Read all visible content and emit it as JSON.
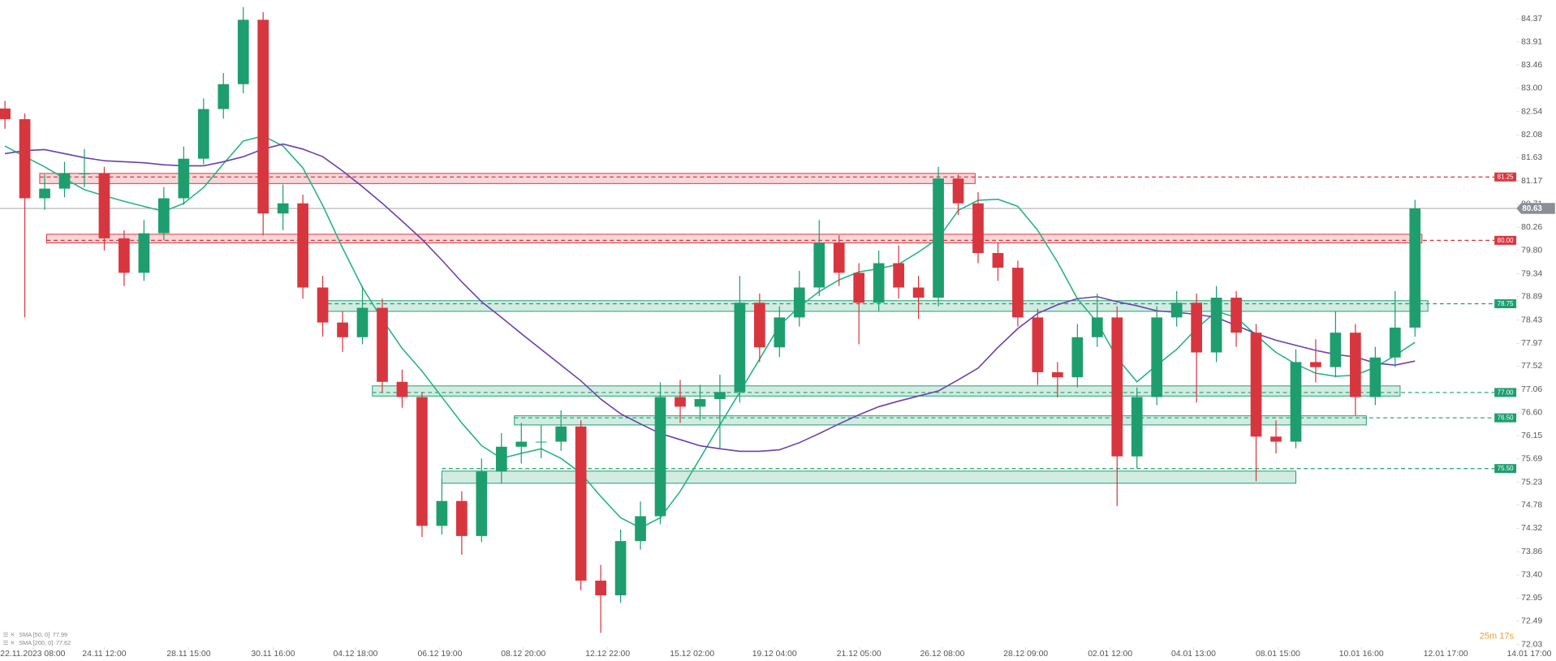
{
  "chart_data": {
    "type": "candlestick",
    "up_color": "#1e9e6e",
    "down_color": "#d8363f",
    "candles": {
      "open": [
        82.6,
        82.39,
        80.83,
        81.02,
        81.32,
        81.32,
        80.04,
        79.36,
        80.14,
        80.83,
        81.61,
        82.59,
        83.08,
        84.35,
        80.53,
        80.73,
        79.07,
        78.38,
        78.09,
        78.67,
        77.21,
        76.91,
        74.37,
        74.86,
        74.17,
        75.44,
        75.93,
        76.03,
        76.03,
        76.33,
        73.29,
        73.0,
        74.07,
        74.56,
        76.91,
        76.72,
        76.87,
        77.01,
        78.77,
        77.89,
        78.48,
        79.07,
        79.95,
        79.36,
        78.77,
        79.55,
        79.07,
        78.87,
        81.22,
        80.73,
        79.75,
        79.46,
        78.48,
        77.4,
        77.3,
        78.09,
        78.48,
        75.74,
        76.91,
        78.48,
        78.77,
        77.79,
        78.87,
        78.18,
        76.13,
        76.03,
        77.6,
        77.5,
        78.18,
        76.91,
        77.69,
        78.28
      ],
      "high": [
        82.75,
        82.5,
        81.3,
        81.55,
        81.8,
        81.45,
        80.2,
        80.4,
        81.05,
        81.85,
        82.8,
        83.3,
        84.6,
        84.5,
        81.1,
        80.9,
        79.3,
        78.6,
        79.1,
        78.85,
        77.45,
        77.0,
        75.3,
        75.05,
        75.7,
        76.2,
        76.4,
        76.35,
        76.65,
        76.45,
        73.6,
        74.3,
        74.85,
        77.2,
        77.25,
        77.15,
        77.35,
        79.3,
        78.95,
        78.7,
        79.4,
        80.4,
        80.1,
        79.55,
        79.8,
        79.9,
        79.3,
        81.45,
        81.3,
        80.95,
        79.95,
        79.6,
        78.65,
        77.6,
        78.35,
        78.95,
        78.7,
        77.1,
        78.7,
        79.0,
        78.95,
        79.1,
        79.0,
        78.35,
        76.45,
        77.85,
        78.05,
        78.6,
        78.35,
        77.9,
        79.0,
        80.8
      ],
      "low": [
        82.2,
        78.48,
        80.6,
        80.85,
        81.05,
        79.8,
        79.1,
        79.2,
        80.0,
        80.7,
        81.5,
        82.4,
        82.9,
        80.1,
        80.2,
        78.85,
        78.1,
        77.8,
        77.95,
        77.0,
        76.7,
        74.15,
        74.2,
        73.8,
        74.05,
        75.2,
        75.6,
        75.7,
        75.85,
        73.1,
        72.26,
        72.85,
        73.9,
        74.4,
        76.4,
        76.45,
        75.9,
        76.8,
        77.6,
        77.7,
        78.3,
        78.9,
        79.1,
        77.95,
        78.6,
        78.85,
        78.45,
        78.7,
        80.5,
        79.55,
        79.2,
        78.3,
        77.15,
        76.9,
        77.1,
        77.9,
        74.76,
        75.5,
        76.75,
        78.3,
        76.8,
        77.6,
        77.9,
        75.25,
        75.8,
        75.9,
        77.2,
        77.3,
        76.55,
        76.75,
        77.5,
        78.1
      ],
      "close": [
        82.39,
        80.83,
        81.02,
        81.32,
        81.32,
        80.04,
        79.36,
        80.14,
        80.83,
        81.61,
        82.59,
        83.08,
        84.35,
        80.53,
        80.73,
        79.07,
        78.38,
        78.09,
        78.67,
        77.21,
        76.91,
        74.37,
        74.86,
        74.17,
        75.44,
        75.93,
        76.03,
        76.03,
        76.33,
        73.29,
        73.0,
        74.07,
        74.56,
        76.91,
        76.72,
        76.87,
        77.01,
        78.77,
        77.89,
        78.48,
        79.07,
        79.95,
        79.36,
        78.77,
        79.55,
        79.07,
        78.87,
        81.22,
        80.73,
        79.75,
        79.46,
        78.48,
        77.4,
        77.3,
        78.09,
        78.48,
        75.74,
        76.91,
        78.48,
        78.77,
        77.79,
        78.87,
        78.18,
        76.13,
        76.03,
        77.6,
        77.5,
        78.18,
        76.91,
        77.69,
        78.28,
        80.63
      ]
    },
    "sma": [
      {
        "name": "SMA [50, 0]",
        "color": "#27b386",
        "values": [
          81.86,
          81.65,
          81.45,
          81.22,
          81.0,
          80.88,
          80.77,
          80.67,
          80.57,
          80.73,
          81.04,
          81.51,
          81.96,
          82.06,
          81.86,
          81.43,
          80.69,
          79.85,
          79.07,
          78.44,
          77.87,
          77.42,
          76.91,
          76.4,
          75.95,
          75.7,
          75.8,
          75.89,
          75.7,
          75.41,
          74.95,
          74.53,
          74.33,
          74.53,
          75.05,
          75.7,
          76.36,
          77.01,
          77.66,
          78.32,
          78.69,
          78.99,
          79.22,
          79.38,
          79.44,
          79.53,
          79.77,
          80.04,
          80.59,
          80.79,
          80.81,
          80.67,
          80.2,
          79.57,
          78.85,
          78.38,
          77.68,
          77.21,
          77.54,
          77.85,
          78.26,
          78.6,
          78.48,
          78.13,
          77.79,
          77.56,
          77.38,
          77.32,
          77.34,
          77.5,
          77.73,
          77.99
        ]
      },
      {
        "name": "SMA [200, 0]",
        "color": "#6b3fae",
        "values": [
          81.71,
          81.77,
          81.79,
          81.71,
          81.63,
          81.57,
          81.55,
          81.53,
          81.49,
          81.47,
          81.47,
          81.55,
          81.65,
          81.8,
          81.9,
          81.8,
          81.65,
          81.37,
          81.06,
          80.73,
          80.38,
          80.02,
          79.61,
          79.18,
          78.79,
          78.48,
          78.16,
          77.85,
          77.54,
          77.23,
          76.87,
          76.58,
          76.38,
          76.19,
          76.07,
          75.95,
          75.89,
          75.84,
          75.84,
          75.87,
          76.01,
          76.19,
          76.38,
          76.56,
          76.72,
          76.83,
          76.93,
          77.03,
          77.25,
          77.48,
          77.89,
          78.26,
          78.56,
          78.73,
          78.85,
          78.89,
          78.79,
          78.71,
          78.61,
          78.58,
          78.54,
          78.48,
          78.32,
          78.16,
          78.03,
          77.93,
          77.83,
          77.75,
          77.7,
          77.58,
          77.54,
          77.62
        ]
      }
    ],
    "levels": [
      {
        "value": 81.25,
        "label": "81.25",
        "color": "#d8363f",
        "zone": [
          81.12,
          81.32
        ],
        "start": 1.75,
        "end": 48.85
      },
      {
        "value": 80,
        "label": "80.00",
        "color": "#d8363f",
        "zone": [
          79.95,
          80.12
        ],
        "start": 2.1,
        "end": 71.35
      },
      {
        "value": 78.75,
        "label": "78.75",
        "color": "#1e9e6e",
        "zone": [
          78.6,
          78.81
        ],
        "start": 16.25,
        "end": 71.65
      },
      {
        "value": 77,
        "label": "77.00",
        "color": "#1e9e6e",
        "zone": [
          76.93,
          77.13
        ],
        "start": 18.5,
        "end": 70.25
      },
      {
        "value": 76.5,
        "label": "76.50",
        "color": "#1e9e6e",
        "zone": [
          76.36,
          76.54
        ],
        "start": 25.65,
        "end": 68.55
      },
      {
        "value": 75.5,
        "label": "75.50",
        "color": "#1e9e6e",
        "zone": [
          75.21,
          75.45
        ],
        "start": 22,
        "end": 65
      }
    ],
    "xlim": [
      -0.25,
      78.1
    ],
    "xticks": [
      {
        "value": 1.4,
        "label": "22.11.2023 08:00"
      },
      {
        "value": 5,
        "label": "24.11 12:00"
      },
      {
        "value": 9.25,
        "label": "28.11 15:00"
      },
      {
        "value": 13.5,
        "label": "30.11 16:00"
      },
      {
        "value": 17.65,
        "label": "04.12 18:00"
      },
      {
        "value": 21.9,
        "label": "06.12 19:00"
      },
      {
        "value": 26.1,
        "label": "08.12 20:00"
      },
      {
        "value": 30.35,
        "label": "12.12 22:00"
      },
      {
        "value": 34.6,
        "label": "15.12 02:00"
      },
      {
        "value": 38.75,
        "label": "19.12 04:00"
      },
      {
        "value": 43,
        "label": "21.12 05:00"
      },
      {
        "value": 47.2,
        "label": "26.12 08:00"
      },
      {
        "value": 51.4,
        "label": "28.12 09:00"
      },
      {
        "value": 55.65,
        "label": "02.01 12:00"
      },
      {
        "value": 59.85,
        "label": "04.01 13:00"
      },
      {
        "value": 64.1,
        "label": "08.01 15:00"
      },
      {
        "value": 68.3,
        "label": "10.01 16:00"
      },
      {
        "value": 72.55,
        "label": "12.01 17:00"
      },
      {
        "value": 76.75,
        "label": "14.01 17:00"
      }
    ],
    "ylim": [
      71.92,
      84.74
    ],
    "yticks": [
      84.37,
      83.91,
      83.46,
      {
        "value": 83,
        "label": "83.00"
      },
      82.54,
      82.08,
      81.63,
      81.17,
      80.71,
      80.26,
      {
        "value": 79.8,
        "label": "79.80"
      },
      79.34,
      78.89,
      78.43,
      77.97,
      77.52,
      77.06,
      {
        "value": 76.6,
        "label": "76.60"
      },
      76.15,
      75.69,
      75.23,
      74.78,
      74.32,
      73.86,
      {
        "value": 73.4,
        "label": "73.40"
      },
      72.95,
      72.49,
      72.03
    ],
    "timer": "25m 17s"
  }
}
